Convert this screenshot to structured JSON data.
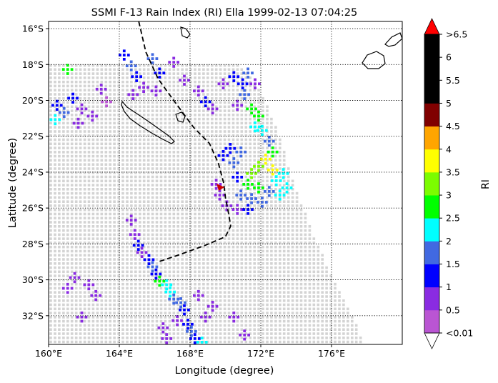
{
  "chart_data": {
    "type": "heatmap",
    "title": "SSMI F-13 Rain Index (RI) Ella 1999-02-13 07:04:25",
    "xlabel": "Longitude (degree)",
    "ylabel": "Latitude (degree)",
    "xlim": [
      160,
      180
    ],
    "ylim": [
      -33.6,
      -15.6
    ],
    "xticks": [
      160,
      164,
      168,
      172,
      176
    ],
    "xtick_labels": [
      "160°E",
      "164°E",
      "168°E",
      "172°E",
      "176°E"
    ],
    "yticks": [
      -16,
      -18,
      -20,
      -22,
      -24,
      -26,
      -28,
      -30,
      -32
    ],
    "ytick_labels": [
      "16°S",
      "18°S",
      "20°S",
      "22°S",
      "24°S",
      "26°S",
      "28°S",
      "30°S",
      "32°S"
    ],
    "grid": true,
    "colorbar": {
      "label": "RI",
      "bounds": [
        0.01,
        0.5,
        1,
        1.5,
        2,
        2.5,
        3,
        3.5,
        4,
        4.5,
        5,
        6.5
      ],
      "tick_labels": [
        "<0.01",
        "0.5",
        "1",
        "1.5",
        "2",
        "2.5",
        "3",
        "3.5",
        "4",
        "4.5",
        "5",
        "5.5",
        "6",
        ">6.5"
      ],
      "colors": [
        "#ba55d3",
        "#8a2be2",
        "#0000ff",
        "#4169e1",
        "#00ffff",
        "#00ff00",
        "#7cfc00",
        "#ffff00",
        "#ffa500",
        "#800000",
        "#000000"
      ],
      "under_color": "#ffffff",
      "over_color": "#ff0000",
      "no_rain_color": "#d3d3d3"
    },
    "storm_center": {
      "name": "Ella",
      "lon": 169.7,
      "lat": -24.8,
      "marker_color": "#cc0000"
    },
    "track": [
      [
        165.1,
        -15.6
      ],
      [
        165.5,
        -17.3
      ],
      [
        166.2,
        -18.8
      ],
      [
        167.0,
        -19.9
      ],
      [
        167.6,
        -20.7
      ],
      [
        168.2,
        -21.5
      ],
      [
        169.1,
        -22.4
      ],
      [
        169.6,
        -23.5
      ],
      [
        169.9,
        -24.6
      ],
      [
        170.0,
        -25.4
      ],
      [
        170.2,
        -26.4
      ],
      [
        170.3,
        -27.0
      ],
      [
        170.0,
        -27.6
      ],
      [
        168.8,
        -28.1
      ],
      [
        167.4,
        -28.6
      ],
      [
        166.2,
        -29.0
      ]
    ],
    "swath_edge": [
      [
        160.0,
        -17.8
      ],
      [
        161.5,
        -17.4
      ],
      [
        163.0,
        -17.0
      ],
      [
        164.5,
        -16.8
      ],
      [
        166.0,
        -16.6
      ],
      [
        167.5,
        -16.6
      ],
      [
        169.0,
        -16.9
      ],
      [
        170.2,
        -17.5
      ],
      [
        171.4,
        -18.6
      ],
      [
        172.3,
        -20.2
      ],
      [
        173.1,
        -22.2
      ],
      [
        173.7,
        -24.3
      ],
      [
        174.2,
        -25.6
      ],
      [
        175.0,
        -27.6
      ],
      [
        175.9,
        -29.6
      ],
      [
        176.9,
        -31.6
      ],
      [
        177.9,
        -33.6
      ]
    ],
    "rain_cells": [
      {
        "lon": 160.4,
        "lat": -20.2,
        "ri": 1.2
      },
      {
        "lon": 160.8,
        "lat": -20.6,
        "ri": 1.6
      },
      {
        "lon": 161.3,
        "lat": -19.8,
        "ri": 1.4
      },
      {
        "lon": 161.8,
        "lat": -20.4,
        "ri": 0.8
      },
      {
        "lon": 160.3,
        "lat": -21.0,
        "ri": 2.3
      },
      {
        "lon": 161.0,
        "lat": -18.2,
        "ri": 2.8
      },
      {
        "lon": 161.6,
        "lat": -21.2,
        "ri": 0.6
      },
      {
        "lon": 162.4,
        "lat": -20.8,
        "ri": 0.9
      },
      {
        "lon": 162.9,
        "lat": -19.3,
        "ri": 0.7
      },
      {
        "lon": 163.2,
        "lat": -20.0,
        "ri": 0.4
      },
      {
        "lon": 164.2,
        "lat": -17.4,
        "ri": 1.1
      },
      {
        "lon": 164.6,
        "lat": -18.0,
        "ri": 1.5
      },
      {
        "lon": 164.9,
        "lat": -18.6,
        "ri": 1.3
      },
      {
        "lon": 165.3,
        "lat": -19.2,
        "ri": 0.9
      },
      {
        "lon": 165.8,
        "lat": -17.6,
        "ri": 1.6
      },
      {
        "lon": 166.2,
        "lat": -18.4,
        "ri": 1.2
      },
      {
        "lon": 166.0,
        "lat": -19.4,
        "ri": 0.6
      },
      {
        "lon": 164.7,
        "lat": -19.6,
        "ri": 0.5
      },
      {
        "lon": 167.0,
        "lat": -17.8,
        "ri": 0.7
      },
      {
        "lon": 167.6,
        "lat": -18.8,
        "ri": 0.5
      },
      {
        "lon": 168.4,
        "lat": -19.4,
        "ri": 0.8
      },
      {
        "lon": 168.8,
        "lat": -20.0,
        "ri": 1.1
      },
      {
        "lon": 169.2,
        "lat": -20.4,
        "ri": 0.9
      },
      {
        "lon": 169.8,
        "lat": -19.0,
        "ri": 0.6
      },
      {
        "lon": 170.4,
        "lat": -18.6,
        "ri": 1.0
      },
      {
        "lon": 170.9,
        "lat": -19.0,
        "ri": 1.4
      },
      {
        "lon": 171.0,
        "lat": -19.6,
        "ri": 1.8
      },
      {
        "lon": 171.2,
        "lat": -18.4,
        "ri": 1.6
      },
      {
        "lon": 171.6,
        "lat": -19.0,
        "ri": 0.9
      },
      {
        "lon": 170.6,
        "lat": -20.2,
        "ri": 0.7
      },
      {
        "lon": 171.4,
        "lat": -20.4,
        "ri": 2.8
      },
      {
        "lon": 171.8,
        "lat": -20.8,
        "ri": 2.6
      },
      {
        "lon": 171.6,
        "lat": -21.4,
        "ri": 2.4
      },
      {
        "lon": 172.0,
        "lat": -21.6,
        "ri": 2.2
      },
      {
        "lon": 172.4,
        "lat": -22.2,
        "ri": 1.8
      },
      {
        "lon": 172.6,
        "lat": -22.8,
        "ri": 2.7
      },
      {
        "lon": 172.2,
        "lat": -23.2,
        "ri": 3.6
      },
      {
        "lon": 171.8,
        "lat": -23.6,
        "ri": 3.2
      },
      {
        "lon": 172.6,
        "lat": -23.8,
        "ri": 3.8
      },
      {
        "lon": 171.4,
        "lat": -24.0,
        "ri": 3.1
      },
      {
        "lon": 172.8,
        "lat": -24.4,
        "ri": 2.3
      },
      {
        "lon": 173.2,
        "lat": -24.0,
        "ri": 2.1
      },
      {
        "lon": 171.2,
        "lat": -24.6,
        "ri": 2.9
      },
      {
        "lon": 171.8,
        "lat": -24.8,
        "ri": 2.6
      },
      {
        "lon": 172.4,
        "lat": -25.0,
        "ri": 1.9
      },
      {
        "lon": 173.0,
        "lat": -25.2,
        "ri": 2.2
      },
      {
        "lon": 173.4,
        "lat": -24.8,
        "ri": 2.4
      },
      {
        "lon": 170.8,
        "lat": -25.2,
        "ri": 1.6
      },
      {
        "lon": 171.4,
        "lat": -25.4,
        "ri": 1.7
      },
      {
        "lon": 172.0,
        "lat": -25.6,
        "ri": 1.5
      },
      {
        "lon": 170.6,
        "lat": -24.2,
        "ri": 1.3
      },
      {
        "lon": 170.4,
        "lat": -23.4,
        "ri": 1.6
      },
      {
        "lon": 170.8,
        "lat": -22.8,
        "ri": 1.8
      },
      {
        "lon": 170.2,
        "lat": -22.6,
        "ri": 1.2
      },
      {
        "lon": 169.8,
        "lat": -23.0,
        "ri": 1.0
      },
      {
        "lon": 170.0,
        "lat": -25.8,
        "ri": 0.8
      },
      {
        "lon": 170.6,
        "lat": -26.0,
        "ri": 0.9
      },
      {
        "lon": 171.2,
        "lat": -26.0,
        "ri": 1.2
      },
      {
        "lon": 169.4,
        "lat": -24.6,
        "ri": 0.6
      },
      {
        "lon": 169.6,
        "lat": -25.2,
        "ri": 0.5
      },
      {
        "lon": 164.6,
        "lat": -26.6,
        "ri": 0.7
      },
      {
        "lon": 164.8,
        "lat": -27.4,
        "ri": 0.9
      },
      {
        "lon": 165.0,
        "lat": -28.0,
        "ri": 1.1
      },
      {
        "lon": 165.2,
        "lat": -28.4,
        "ri": 0.8
      },
      {
        "lon": 165.6,
        "lat": -28.8,
        "ri": 1.3
      },
      {
        "lon": 165.8,
        "lat": -29.2,
        "ri": 1.6
      },
      {
        "lon": 166.0,
        "lat": -29.6,
        "ri": 1.4
      },
      {
        "lon": 166.2,
        "lat": -30.0,
        "ri": 2.5
      },
      {
        "lon": 166.6,
        "lat": -30.2,
        "ri": 2.3
      },
      {
        "lon": 166.8,
        "lat": -30.6,
        "ri": 2.1
      },
      {
        "lon": 167.0,
        "lat": -31.0,
        "ri": 1.7
      },
      {
        "lon": 167.4,
        "lat": -31.2,
        "ri": 1.5
      },
      {
        "lon": 167.6,
        "lat": -31.6,
        "ri": 1.2
      },
      {
        "lon": 167.2,
        "lat": -32.2,
        "ri": 0.9
      },
      {
        "lon": 167.8,
        "lat": -32.4,
        "ri": 1.4
      },
      {
        "lon": 168.0,
        "lat": -32.8,
        "ri": 1.6
      },
      {
        "lon": 168.2,
        "lat": -33.2,
        "ri": 1.1
      },
      {
        "lon": 168.6,
        "lat": -33.4,
        "ri": 2.2
      },
      {
        "lon": 166.4,
        "lat": -32.6,
        "ri": 0.7
      },
      {
        "lon": 166.6,
        "lat": -33.2,
        "ri": 0.9
      },
      {
        "lon": 162.6,
        "lat": -30.8,
        "ri": 0.6
      },
      {
        "lon": 162.2,
        "lat": -30.2,
        "ri": 0.7
      },
      {
        "lon": 161.4,
        "lat": -29.8,
        "ri": 0.6
      },
      {
        "lon": 161.0,
        "lat": -30.4,
        "ri": 0.8
      },
      {
        "lon": 161.8,
        "lat": -32.0,
        "ri": 0.7
      },
      {
        "lon": 170.4,
        "lat": -32.0,
        "ri": 0.5
      },
      {
        "lon": 171.0,
        "lat": -33.0,
        "ri": 0.6
      },
      {
        "lon": 168.8,
        "lat": -32.0,
        "ri": 0.8
      },
      {
        "lon": 169.2,
        "lat": -31.4,
        "ri": 0.6
      },
      {
        "lon": 168.4,
        "lat": -30.8,
        "ri": 0.7
      }
    ]
  }
}
